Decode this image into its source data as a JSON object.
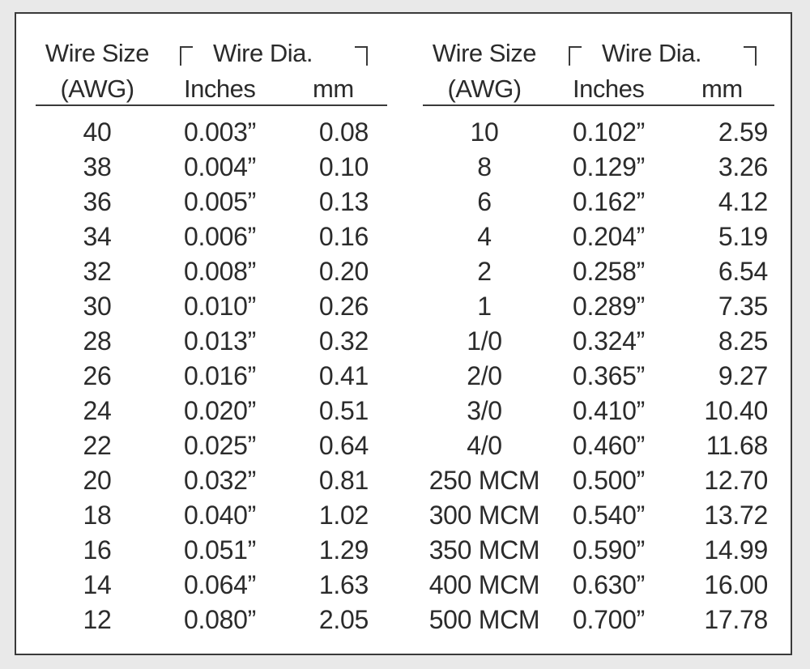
{
  "header": {
    "wire_size": "Wire Size",
    "awg": "(AWG)",
    "wire_dia": "Wire Dia.",
    "inches": "Inches",
    "mm": "mm"
  },
  "left_rows": [
    {
      "awg": "40",
      "inches": "0.003”",
      "mm": "0.08"
    },
    {
      "awg": "38",
      "inches": "0.004”",
      "mm": "0.10"
    },
    {
      "awg": "36",
      "inches": "0.005”",
      "mm": "0.13"
    },
    {
      "awg": "34",
      "inches": "0.006”",
      "mm": "0.16"
    },
    {
      "awg": "32",
      "inches": "0.008”",
      "mm": "0.20"
    },
    {
      "awg": "30",
      "inches": "0.010”",
      "mm": "0.26"
    },
    {
      "awg": "28",
      "inches": "0.013”",
      "mm": "0.32"
    },
    {
      "awg": "26",
      "inches": "0.016”",
      "mm": "0.41"
    },
    {
      "awg": "24",
      "inches": "0.020”",
      "mm": "0.51"
    },
    {
      "awg": "22",
      "inches": "0.025”",
      "mm": "0.64"
    },
    {
      "awg": "20",
      "inches": "0.032”",
      "mm": "0.81"
    },
    {
      "awg": "18",
      "inches": "0.040”",
      "mm": "1.02"
    },
    {
      "awg": "16",
      "inches": "0.051”",
      "mm": "1.29"
    },
    {
      "awg": "14",
      "inches": "0.064”",
      "mm": "1.63"
    },
    {
      "awg": "12",
      "inches": "0.080”",
      "mm": "2.05"
    }
  ],
  "right_rows": [
    {
      "awg": "10",
      "inches": "0.102”",
      "mm": "2.59"
    },
    {
      "awg": "8",
      "inches": "0.129”",
      "mm": "3.26"
    },
    {
      "awg": "6",
      "inches": "0.162”",
      "mm": "4.12"
    },
    {
      "awg": "4",
      "inches": "0.204”",
      "mm": "5.19"
    },
    {
      "awg": "2",
      "inches": "0.258”",
      "mm": "6.54"
    },
    {
      "awg": "1",
      "inches": "0.289”",
      "mm": "7.35"
    },
    {
      "awg": "1/0",
      "inches": "0.324”",
      "mm": "8.25"
    },
    {
      "awg": "2/0",
      "inches": "0.365”",
      "mm": "9.27"
    },
    {
      "awg": "3/0",
      "inches": "0.410”",
      "mm": "10.40"
    },
    {
      "awg": "4/0",
      "inches": "0.460”",
      "mm": "11.68"
    },
    {
      "awg": "250 MCM",
      "inches": "0.500”",
      "mm": "12.70"
    },
    {
      "awg": "300 MCM",
      "inches": "0.540”",
      "mm": "13.72"
    },
    {
      "awg": "350 MCM",
      "inches": "0.590”",
      "mm": "14.99"
    },
    {
      "awg": "400 MCM",
      "inches": "0.630”",
      "mm": "16.00"
    },
    {
      "awg": "500 MCM",
      "inches": "0.700”",
      "mm": "17.78"
    }
  ]
}
